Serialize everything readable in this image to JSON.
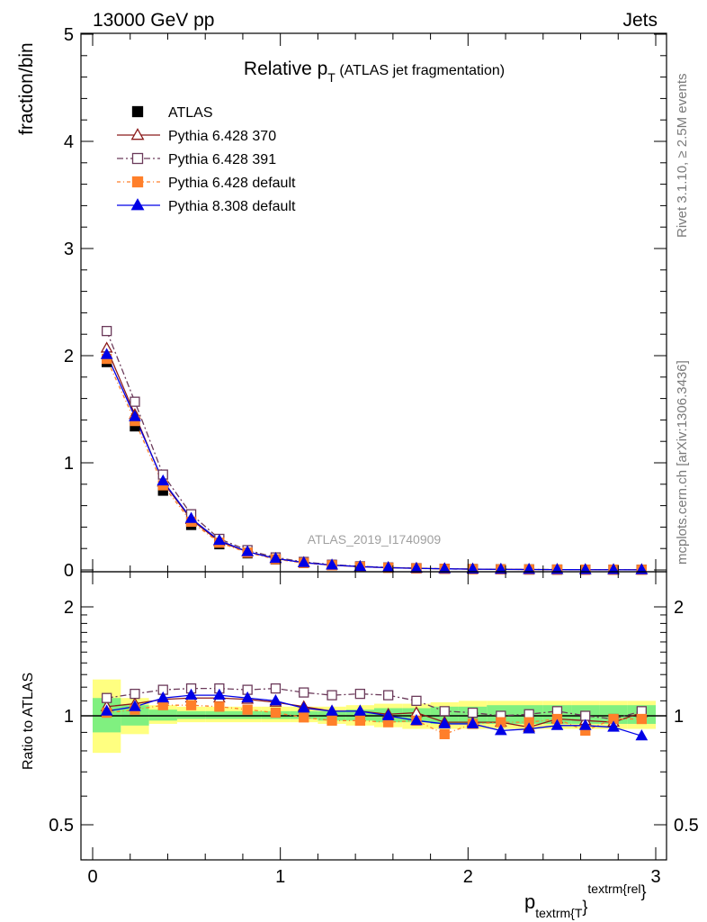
{
  "header": {
    "left": "13000 GeV pp",
    "right": "Jets"
  },
  "side_labels": {
    "rivet": "Rivet 3.1.10, ≥ 2.5M events",
    "mcplots": "mcplots.cern.ch [arXiv:1306.3436]"
  },
  "watermark": "ATLAS_2019_I1740909",
  "chart_data": {
    "type": "scatter",
    "title": "Relative p",
    "title_sub": "T",
    "title_suffix": "(ATLAS jet fragmentation)",
    "xlabel": "p",
    "xlabel_sub": "textrm{T",
    "xlabel_brace": "}",
    "xlabel_sup": "textrm{rel",
    "xlabel_brace2": "}",
    "ylabel": "fraction/bin",
    "ratio_ylabel": "Ratio to ATLAS",
    "xlim": [
      0,
      3
    ],
    "ylim": [
      0,
      5
    ],
    "ratio_ylim": [
      0.35,
      2.3
    ],
    "ratio_scale": "log",
    "x_ticks": [
      "0",
      "1",
      "2",
      "3"
    ],
    "y_ticks": [
      "0",
      "1",
      "2",
      "3",
      "4",
      "5"
    ],
    "ratio_ticks": [
      "0.5",
      "1",
      "2"
    ],
    "legend_position": "top-left",
    "bins": [
      0.0,
      0.15,
      0.3,
      0.45,
      0.6,
      0.75,
      0.9,
      1.05,
      1.2,
      1.35,
      1.5,
      1.65,
      1.8,
      1.95,
      2.1,
      2.25,
      2.4,
      2.55,
      2.7,
      2.85,
      3.0
    ],
    "x": [
      0.075,
      0.225,
      0.375,
      0.525,
      0.675,
      0.825,
      0.975,
      1.125,
      1.275,
      1.425,
      1.575,
      1.725,
      1.875,
      2.025,
      2.175,
      2.325,
      2.475,
      2.625,
      2.775,
      2.925
    ],
    "data": {
      "name": "ATLAS",
      "values": [
        1.94,
        1.34,
        0.74,
        0.42,
        0.24,
        0.155,
        0.098,
        0.065,
        0.044,
        0.03,
        0.021,
        0.015,
        0.011,
        0.008,
        0.006,
        0.0045,
        0.0034,
        0.0026,
        0.002,
        0.0015
      ]
    },
    "band_outer": [
      [
        0.79,
        1.26
      ],
      [
        0.89,
        1.12
      ],
      [
        0.95,
        1.07
      ],
      [
        0.96,
        1.06
      ],
      [
        0.96,
        1.06
      ],
      [
        0.96,
        1.06
      ],
      [
        0.96,
        1.06
      ],
      [
        0.96,
        1.06
      ],
      [
        0.95,
        1.06
      ],
      [
        0.94,
        1.07
      ],
      [
        0.93,
        1.08
      ],
      [
        0.92,
        1.08
      ],
      [
        0.92,
        1.09
      ],
      [
        0.92,
        1.1
      ],
      [
        0.92,
        1.1
      ],
      [
        0.92,
        1.1
      ],
      [
        0.92,
        1.1
      ],
      [
        0.92,
        1.1
      ],
      [
        0.92,
        1.1
      ],
      [
        0.92,
        1.1
      ]
    ],
    "band_inner": [
      [
        0.9,
        1.12
      ],
      [
        0.94,
        1.07
      ],
      [
        0.97,
        1.04
      ],
      [
        0.98,
        1.03
      ],
      [
        0.98,
        1.03
      ],
      [
        0.98,
        1.03
      ],
      [
        0.98,
        1.03
      ],
      [
        0.98,
        1.03
      ],
      [
        0.97,
        1.03
      ],
      [
        0.97,
        1.04
      ],
      [
        0.96,
        1.05
      ],
      [
        0.96,
        1.05
      ],
      [
        0.95,
        1.06
      ],
      [
        0.95,
        1.06
      ],
      [
        0.95,
        1.07
      ],
      [
        0.95,
        1.07
      ],
      [
        0.95,
        1.07
      ],
      [
        0.95,
        1.07
      ],
      [
        0.95,
        1.07
      ],
      [
        0.95,
        1.07
      ]
    ],
    "series": [
      {
        "name": "Pythia 6.428 370",
        "color": "#8b1a1a",
        "marker": "triangle-open",
        "dash": "",
        "values": [
          2.07,
          1.45,
          0.82,
          0.47,
          0.265,
          0.17,
          0.106,
          0.069,
          0.045,
          0.031,
          0.021,
          0.0155,
          0.0105,
          0.0076,
          0.0058,
          0.0041,
          0.0033,
          0.0025,
          0.0019,
          0.00153
        ],
        "ratio": [
          1.06,
          1.08,
          1.11,
          1.12,
          1.12,
          1.11,
          1.09,
          1.06,
          1.03,
          1.03,
          1.01,
          1.02,
          0.96,
          0.96,
          0.96,
          0.93,
          0.98,
          0.97,
          0.96,
          1.02
        ]
      },
      {
        "name": "Pythia 6.428 391",
        "color": "#6b3a5a",
        "marker": "square-open",
        "dash": "7,3,2,3",
        "values": [
          2.23,
          1.57,
          0.89,
          0.52,
          0.29,
          0.185,
          0.117,
          0.075,
          0.049,
          0.034,
          0.023,
          0.0167,
          0.0113,
          0.0082,
          0.006,
          0.0046,
          0.0035,
          0.0026,
          0.002,
          0.00155
        ],
        "ratio": [
          1.12,
          1.15,
          1.18,
          1.19,
          1.19,
          1.18,
          1.19,
          1.16,
          1.14,
          1.15,
          1.14,
          1.1,
          1.03,
          1.02,
          1.0,
          1.01,
          1.03,
          1.0,
          0.98,
          1.03
        ]
      },
      {
        "name": "Pythia 6.428 default",
        "color": "#ff7f2a",
        "marker": "square-filled",
        "dash": "4,3,1,3",
        "values": [
          1.97,
          1.39,
          0.79,
          0.45,
          0.255,
          0.162,
          0.1,
          0.065,
          0.043,
          0.029,
          0.02,
          0.0145,
          0.0098,
          0.0076,
          0.0058,
          0.0043,
          0.0034,
          0.0024,
          0.002,
          0.00148
        ],
        "ratio": [
          1.02,
          1.04,
          1.07,
          1.07,
          1.06,
          1.04,
          1.02,
          0.99,
          0.97,
          0.97,
          0.96,
          0.97,
          0.89,
          0.95,
          0.96,
          0.96,
          0.98,
          0.91,
          0.98,
          0.98
        ]
      },
      {
        "name": "Pythia 8.308 default",
        "color": "#0000e6",
        "marker": "triangle-filled",
        "dash": "",
        "values": [
          2.01,
          1.43,
          0.83,
          0.48,
          0.275,
          0.17,
          0.107,
          0.068,
          0.045,
          0.031,
          0.021,
          0.0145,
          0.0105,
          0.0076,
          0.0055,
          0.0042,
          0.0032,
          0.0024,
          0.0019,
          0.00132
        ],
        "ratio": [
          1.03,
          1.06,
          1.12,
          1.14,
          1.14,
          1.12,
          1.1,
          1.05,
          1.03,
          1.03,
          1.0,
          0.97,
          0.95,
          0.95,
          0.91,
          0.92,
          0.94,
          0.94,
          0.93,
          0.88
        ]
      }
    ]
  }
}
